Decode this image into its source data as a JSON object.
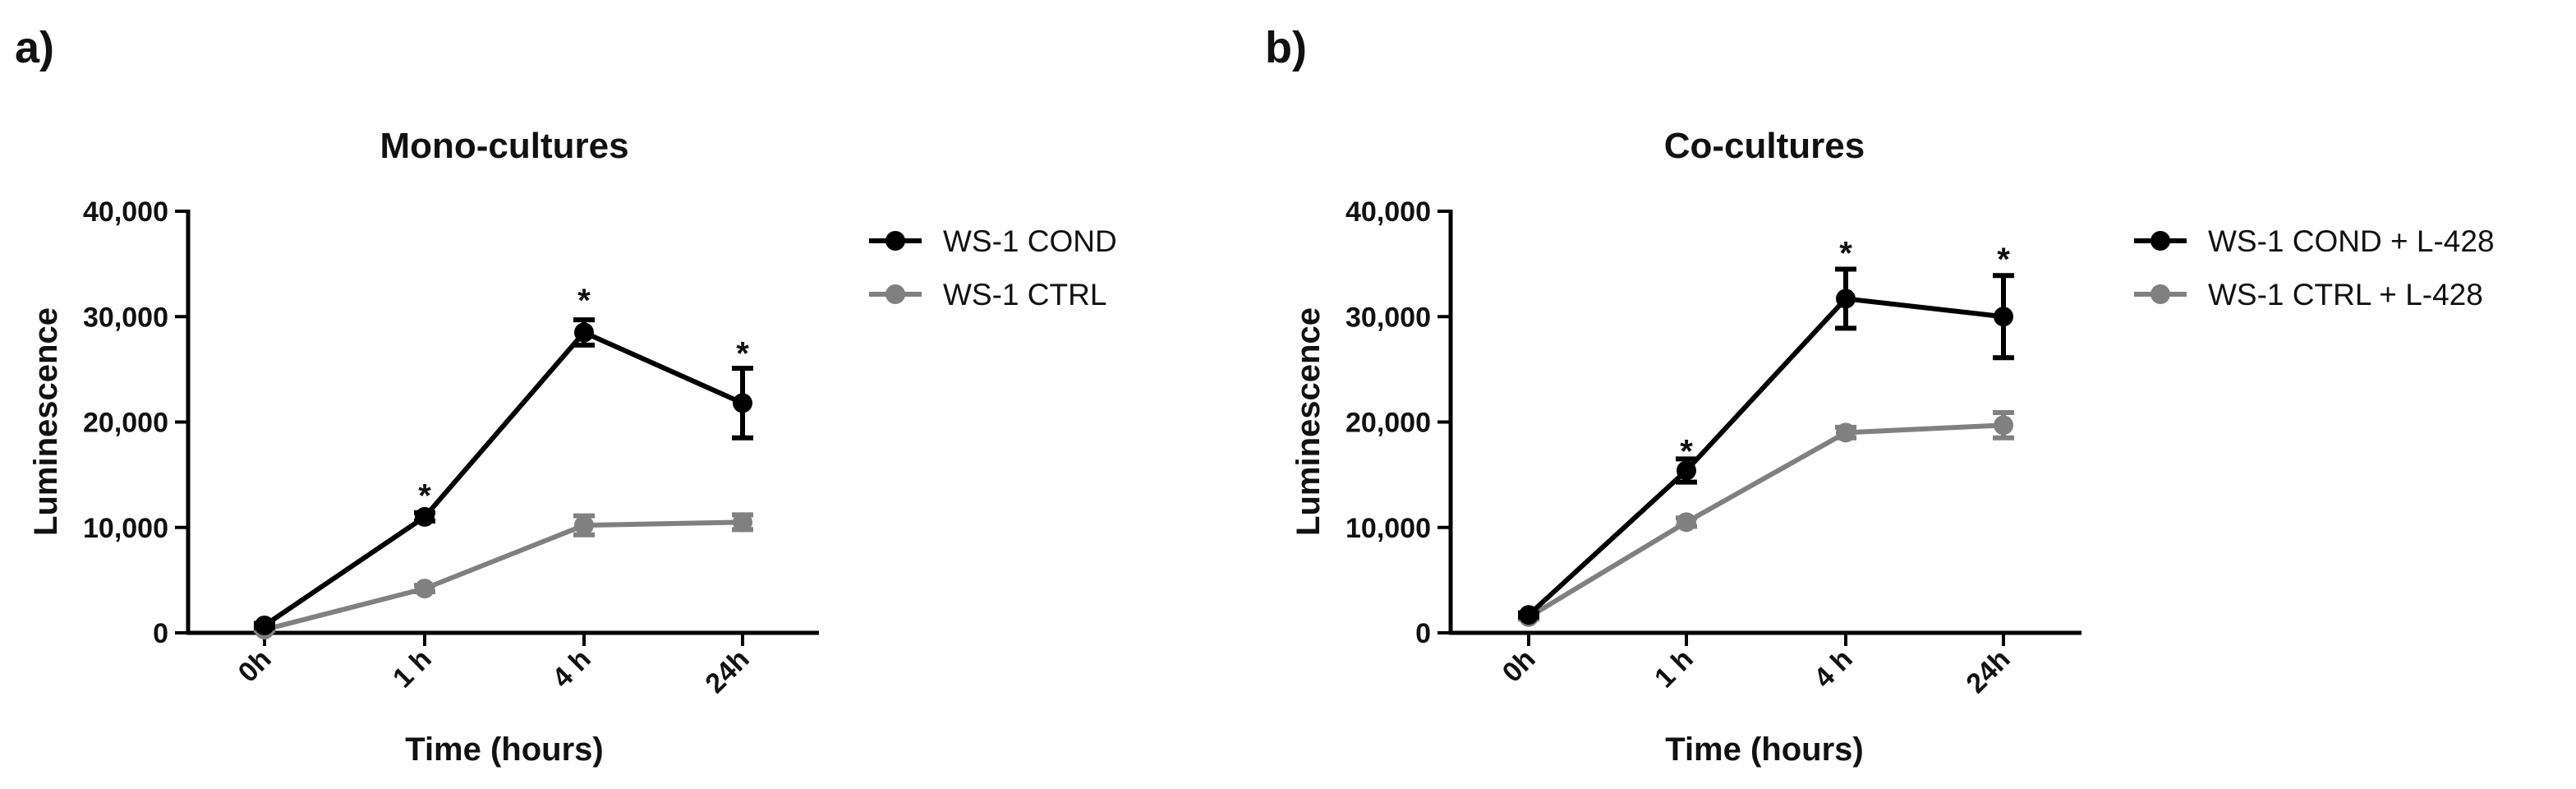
{
  "chart_data": [
    {
      "panel_label": "a)",
      "type": "line",
      "title": "Mono-cultures",
      "xlabel": "Time (hours)",
      "ylabel": "Luminescence",
      "categories": [
        "0h",
        "1 h",
        "4 h",
        "24h"
      ],
      "ylim": [
        0,
        40000
      ],
      "yticks": [
        0,
        10000,
        20000,
        30000,
        40000
      ],
      "ytick_labels": [
        "0",
        "10,000",
        "20,000",
        "30,000",
        "40,000"
      ],
      "legend_position": "right",
      "series": [
        {
          "name": "WS-1 COND",
          "color": "#000000",
          "values": [
            700,
            11000,
            28500,
            21800
          ],
          "errors": [
            200,
            400,
            1200,
            3300
          ]
        },
        {
          "name": "WS-1 CTRL",
          "color": "#808080",
          "values": [
            300,
            4200,
            10200,
            10500
          ],
          "errors": [
            100,
            300,
            900,
            700
          ]
        }
      ],
      "annotations": [
        {
          "text": "*",
          "category": "1 h",
          "value": 14000
        },
        {
          "text": "*",
          "category": "4 h",
          "value": 32500
        },
        {
          "text": "*",
          "category": "24h",
          "value": 27500
        }
      ]
    },
    {
      "panel_label": "b)",
      "type": "line",
      "title": "Co-cultures",
      "xlabel": "Time (hours)",
      "ylabel": "Luminescence",
      "categories": [
        "0h",
        "1 h",
        "4 h",
        "24h"
      ],
      "ylim": [
        0,
        40000
      ],
      "yticks": [
        0,
        10000,
        20000,
        30000,
        40000
      ],
      "ytick_labels": [
        "0",
        "10,000",
        "20,000",
        "30,000",
        "40,000"
      ],
      "legend_position": "right",
      "series": [
        {
          "name": "WS-1 COND + L-428",
          "color": "#000000",
          "values": [
            1700,
            15400,
            31700,
            30000
          ],
          "errors": [
            200,
            1100,
            2800,
            3900
          ]
        },
        {
          "name": "WS-1 CTRL + L-428",
          "color": "#808080",
          "values": [
            1500,
            10500,
            19000,
            19700
          ],
          "errors": [
            200,
            400,
            500,
            1200
          ]
        }
      ],
      "annotations": [
        {
          "text": "*",
          "category": "1 h",
          "value": 18200
        },
        {
          "text": "*",
          "category": "4 h",
          "value": 37000
        },
        {
          "text": "*",
          "category": "24h",
          "value": 36400
        }
      ]
    }
  ]
}
